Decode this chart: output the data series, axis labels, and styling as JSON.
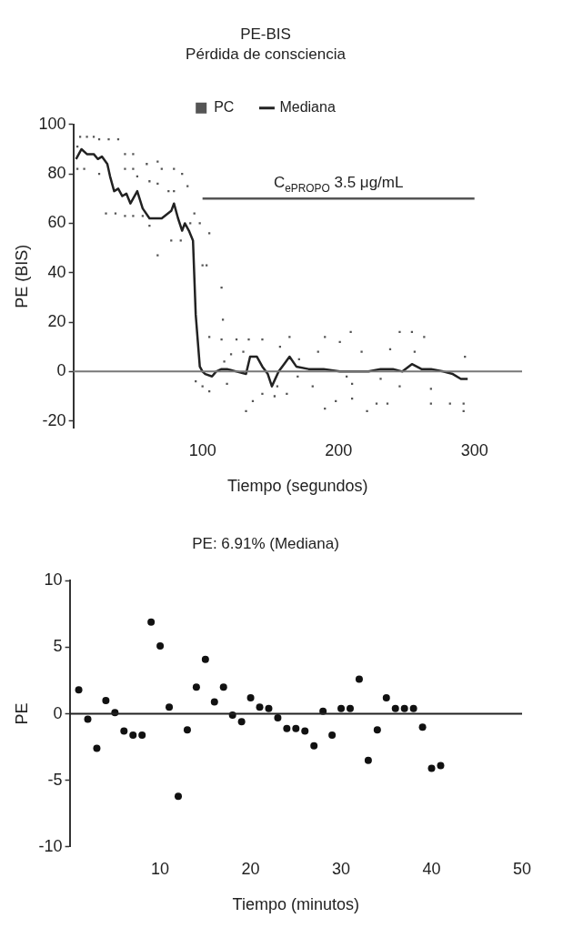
{
  "chart_data": [
    {
      "type": "line",
      "title": "PE-BIS",
      "subtitle": "Pérdida de consciencia",
      "xlabel": "Tiempo (segundos)",
      "ylabel": "PE (BIS)",
      "xlim": [
        5,
        335
      ],
      "ylim": [
        -23,
        100
      ],
      "xticks": [
        100,
        200,
        300
      ],
      "yticks": [
        -20,
        0,
        20,
        40,
        60,
        80,
        100
      ],
      "grid": false,
      "legend": "top",
      "ref_lines": [
        {
          "axis": "y",
          "value": 0,
          "color": "#777777"
        }
      ],
      "series": [
        {
          "name": "PC",
          "type": "scatter",
          "color": "#555555",
          "marker": "square",
          "x": [
            10,
            15,
            20,
            24,
            31,
            38,
            8,
            8,
            13,
            24,
            43,
            49,
            43,
            49,
            59,
            67,
            70,
            79,
            85,
            52,
            61,
            67,
            75,
            79,
            89,
            29,
            36,
            43,
            49,
            56,
            61,
            67,
            77,
            84,
            91,
            98,
            94,
            105,
            100,
            103,
            114,
            115,
            105,
            114,
            125,
            134,
            144,
            121,
            130,
            116,
            95,
            100,
            105,
            118,
            137,
            132,
            144,
            153,
            157,
            164,
            190,
            201,
            209,
            245,
            254,
            263,
            171,
            185,
            217,
            238,
            256,
            293,
            155,
            162,
            181,
            190,
            198,
            210,
            221,
            228,
            236,
            245,
            268,
            282,
            292,
            292,
            210,
            231,
            268,
            170,
            206
          ],
          "values": [
            95,
            95,
            95,
            94,
            94,
            94,
            91,
            82,
            82,
            80,
            88,
            88,
            82,
            82,
            84,
            85,
            82,
            82,
            80,
            79,
            77,
            76,
            73,
            73,
            75,
            64,
            64,
            63,
            63,
            63,
            59,
            47,
            53,
            53,
            60,
            60,
            64,
            56,
            43,
            43,
            34,
            21,
            14,
            13,
            13,
            13,
            13,
            7,
            8,
            4,
            -4,
            -6,
            -8,
            -5,
            -12,
            -16,
            -9,
            -10,
            10,
            14,
            14,
            12,
            16,
            16,
            16,
            14,
            5,
            8,
            8,
            9,
            8,
            6,
            -6,
            -9,
            -6,
            -15,
            -12,
            -11,
            -16,
            -13,
            -13,
            -6,
            -13,
            -13,
            -13,
            -16,
            -5,
            -3,
            -7,
            -2,
            -2
          ]
        },
        {
          "name": "Mediana",
          "type": "line",
          "color": "#222222",
          "marker": "none",
          "x": [
            7,
            11,
            15,
            20,
            23,
            26,
            30,
            32,
            35,
            38,
            41,
            44,
            47,
            52,
            56,
            61,
            70,
            77,
            79,
            82,
            85,
            87,
            90,
            93,
            95,
            98,
            100,
            102,
            107,
            110,
            114,
            118,
            125,
            132,
            135,
            140,
            144,
            148,
            151,
            156,
            160,
            164,
            169,
            178,
            189,
            201,
            212,
            222,
            231,
            240,
            247,
            254,
            261,
            268,
            277,
            284,
            290,
            295
          ],
          "values": [
            86,
            90,
            88,
            88,
            86,
            87,
            84,
            79,
            73,
            74,
            71,
            72,
            68,
            73,
            66,
            62,
            62,
            65,
            68,
            62,
            57,
            60,
            57,
            53,
            23,
            2,
            0,
            -1,
            -2,
            0,
            1,
            1,
            0,
            -1,
            6,
            6,
            2,
            -1,
            -6,
            0,
            3,
            6,
            2,
            1,
            1,
            0,
            0,
            0,
            1,
            1,
            0,
            3,
            1,
            1,
            0,
            -1,
            -3,
            -3
          ]
        },
        {
          "name": "C$_{ePROPO}$ 3.5 μg/mL",
          "type": "line",
          "color": "#555555",
          "marker": "none",
          "x": [
            100,
            300
          ],
          "values": [
            70,
            70
          ]
        }
      ]
    },
    {
      "type": "scatter",
      "title": "PE: 6.91% (Mediana)",
      "xlabel": "Tiempo (minutos)",
      "ylabel": "PE",
      "xlim": [
        0,
        50
      ],
      "ylim": [
        -10,
        10
      ],
      "xticks": [
        10,
        20,
        30,
        40,
        50
      ],
      "yticks": [
        -10,
        -5,
        0,
        5,
        10
      ],
      "grid": false,
      "marker": "circle",
      "ref_lines": [
        {
          "axis": "y",
          "value": 0,
          "color": "#222222"
        }
      ],
      "x": [
        1,
        2,
        3,
        4,
        5,
        6,
        7,
        8,
        9,
        10,
        11,
        12,
        13,
        14,
        15,
        16,
        17,
        18,
        19,
        20,
        21,
        22,
        23,
        24,
        25,
        26,
        27,
        28,
        29,
        30,
        31,
        32,
        33,
        34,
        35,
        36,
        37,
        38,
        39,
        40,
        41
      ],
      "series": [
        {
          "color": "#111111",
          "values": [
            1.8,
            -0.4,
            -2.6,
            1.0,
            0.1,
            -1.3,
            -1.6,
            -1.6,
            6.9,
            5.1,
            0.5,
            -6.2,
            -1.2,
            2.0,
            4.1,
            0.9,
            2.0,
            -0.1,
            -0.6,
            1.2,
            0.5,
            0.4,
            -0.3,
            -1.1,
            -1.1,
            -1.3,
            -2.4,
            0.2,
            -1.6,
            0.4,
            0.4,
            2.6,
            -3.5,
            -1.2,
            1.2,
            0.4,
            0.4,
            0.4,
            -1.0,
            -4.1,
            -3.9
          ]
        }
      ]
    }
  ]
}
